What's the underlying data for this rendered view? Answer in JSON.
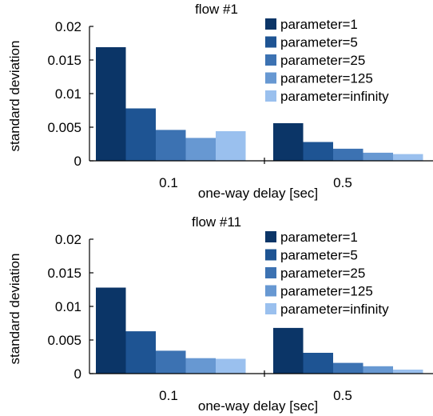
{
  "chart_data": [
    {
      "type": "bar",
      "title": "flow #1",
      "xlabel": "one-way delay [sec]",
      "ylabel": "standard deviation",
      "categories": [
        "0.1",
        "0.5"
      ],
      "y_ticks": [
        "0",
        "0.005",
        "0.01",
        "0.015",
        "0.02"
      ],
      "ylim": [
        0,
        0.02
      ],
      "grid": false,
      "legend_position": "top-right",
      "series": [
        {
          "name": "parameter=1",
          "color": "#0b3567",
          "values": [
            0.0169,
            0.0056
          ]
        },
        {
          "name": "parameter=5",
          "color": "#1e5493",
          "values": [
            0.0078,
            0.0028
          ]
        },
        {
          "name": "parameter=25",
          "color": "#3c72b2",
          "values": [
            0.0046,
            0.0018
          ]
        },
        {
          "name": "parameter=125",
          "color": "#6798d2",
          "values": [
            0.0034,
            0.0012
          ]
        },
        {
          "name": "parameter=infinity",
          "color": "#9ac0ee",
          "values": [
            0.0044,
            0.001
          ]
        }
      ]
    },
    {
      "type": "bar",
      "title": "flow #11",
      "xlabel": "one-way delay [sec]",
      "ylabel": "standard deviation",
      "categories": [
        "0.1",
        "0.5"
      ],
      "y_ticks": [
        "0",
        "0.005",
        "0.01",
        "0.015",
        "0.02"
      ],
      "ylim": [
        0,
        0.02
      ],
      "grid": false,
      "legend_position": "top-right",
      "series": [
        {
          "name": "parameter=1",
          "color": "#0b3567",
          "values": [
            0.0128,
            0.0068
          ]
        },
        {
          "name": "parameter=5",
          "color": "#1e5493",
          "values": [
            0.0063,
            0.0031
          ]
        },
        {
          "name": "parameter=25",
          "color": "#3c72b2",
          "values": [
            0.0034,
            0.0016
          ]
        },
        {
          "name": "parameter=125",
          "color": "#6798d2",
          "values": [
            0.0023,
            0.0011
          ]
        },
        {
          "name": "parameter=infinity",
          "color": "#9ac0ee",
          "values": [
            0.0022,
            0.0006
          ]
        }
      ]
    }
  ]
}
